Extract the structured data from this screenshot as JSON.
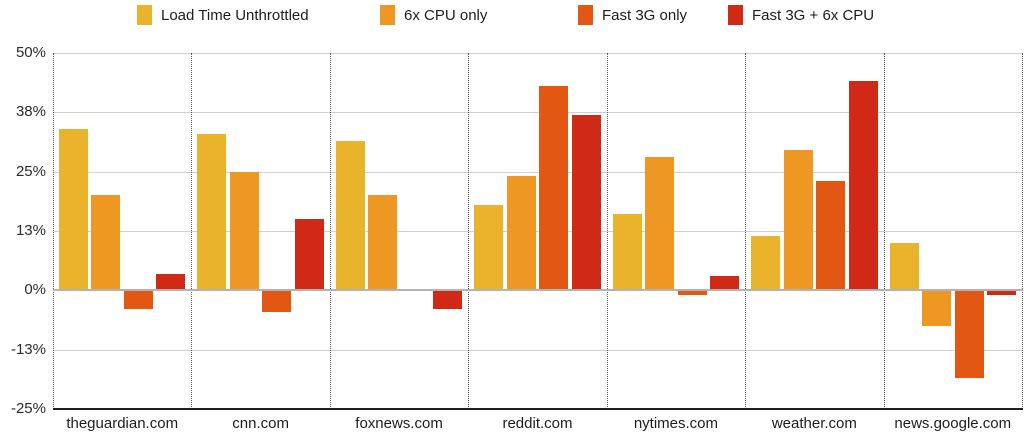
{
  "chart_data": {
    "type": "bar",
    "title": "",
    "xlabel": "",
    "ylabel": "",
    "grid": true,
    "legend_position": "top",
    "categories": [
      "theguardian.com",
      "cnn.com",
      "foxnews.com",
      "reddit.com",
      "nytimes.com",
      "weather.com",
      "news.google.com"
    ],
    "series": [
      {
        "name": "Load Time Unthrottled",
        "color": "#E9B42C",
        "values": [
          34,
          33,
          31.5,
          18,
          16,
          11.5,
          10
        ]
      },
      {
        "name": "6x CPU only",
        "color": "#EE9722",
        "values": [
          20,
          25,
          20,
          24,
          28,
          29.5,
          -7.5
        ]
      },
      {
        "name": "Fast 3G only",
        "color": "#E25812",
        "values": [
          -4,
          -4.5,
          0,
          43,
          -1,
          23,
          -18.5
        ]
      },
      {
        "name": "Fast 3G + 6x CPU",
        "color": "#D02915",
        "values": [
          3.5,
          15,
          -4,
          37,
          3,
          44,
          -1
        ]
      }
    ],
    "y_axis": {
      "min": -25,
      "max": 50,
      "ticks": [
        50,
        37.5,
        25,
        12.5,
        0,
        -12.5,
        -25
      ],
      "tick_labels": [
        "50%",
        "38%",
        "25%",
        "13%",
        "0%",
        "-13%",
        "-25%"
      ]
    }
  },
  "colors": {
    "gridline": "#cfcfcf",
    "zero_line": "#b3b3b3",
    "bottom_axis": "#1f1f1f",
    "background": "#ffffff"
  }
}
